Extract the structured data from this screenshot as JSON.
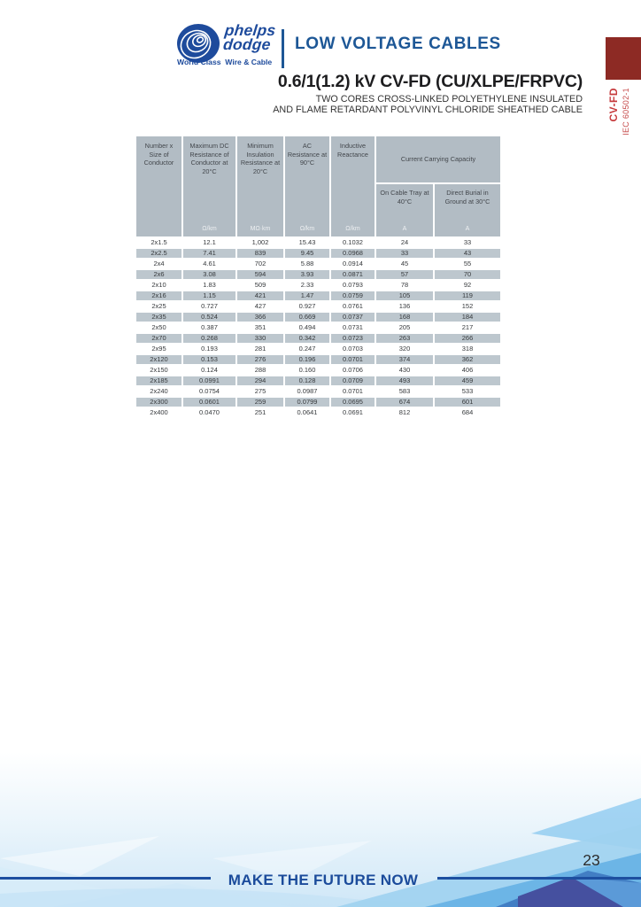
{
  "brand": {
    "logo_line1": "phelps",
    "logo_line2": "dodge",
    "tagline": "World Class  Wire & Cable",
    "category": "LOW VOLTAGE CABLES"
  },
  "side_tab": {
    "code": "CV-FD",
    "standard": "IEC 60502-1",
    "tab_color": "#8d2a24",
    "text_color": "#c63a3c"
  },
  "product": {
    "title": "0.6/1(1.2) kV CV-FD (CU/XLPE/FRPVC)",
    "subtitle_line1": "TWO CORES CROSS-LINKED POLYETHYLENE INSULATED",
    "subtitle_line2": "AND FLAME RETARDANT POLYVINYL CHLORIDE SHEATHED CABLE"
  },
  "table": {
    "headers": {
      "col1": "Number x Size of Conductor",
      "col2": "Maximum DC Resistance of Conductor at 20°C",
      "col3": "Minimum Insulation Resistance at 20°C",
      "col4": "AC Resistance at 90°C",
      "col5": "Inductive Reactance",
      "ccc": "Current Carrying Capacity",
      "ccc_sub1": "On Cable Tray at 40°C",
      "ccc_sub2": "Direct Burial in Ground at 30°C"
    },
    "units": [
      "",
      "Ω/km",
      "MΩ·km",
      "Ω/km",
      "Ω/km",
      "A",
      "A"
    ],
    "rows": [
      [
        "2x1.5",
        "12.1",
        "1,002",
        "15.43",
        "0.1032",
        "24",
        "33"
      ],
      [
        "2x2.5",
        "7.41",
        "839",
        "9.45",
        "0.0968",
        "33",
        "43"
      ],
      [
        "2x4",
        "4.61",
        "702",
        "5.88",
        "0.0914",
        "45",
        "55"
      ],
      [
        "2x6",
        "3.08",
        "594",
        "3.93",
        "0.0871",
        "57",
        "70"
      ],
      [
        "2x10",
        "1.83",
        "509",
        "2.33",
        "0.0793",
        "78",
        "92"
      ],
      [
        "2x16",
        "1.15",
        "421",
        "1.47",
        "0.0759",
        "105",
        "119"
      ],
      [
        "2x25",
        "0.727",
        "427",
        "0.927",
        "0.0761",
        "136",
        "152"
      ],
      [
        "2x35",
        "0.524",
        "366",
        "0.669",
        "0.0737",
        "168",
        "184"
      ],
      [
        "2x50",
        "0.387",
        "351",
        "0.494",
        "0.0731",
        "205",
        "217"
      ],
      [
        "2x70",
        "0.268",
        "330",
        "0.342",
        "0.0723",
        "263",
        "266"
      ],
      [
        "2x95",
        "0.193",
        "281",
        "0.247",
        "0.0703",
        "320",
        "318"
      ],
      [
        "2x120",
        "0.153",
        "276",
        "0.196",
        "0.0701",
        "374",
        "362"
      ],
      [
        "2x150",
        "0.124",
        "288",
        "0.160",
        "0.0706",
        "430",
        "406"
      ],
      [
        "2x185",
        "0.0991",
        "294",
        "0.128",
        "0.0709",
        "493",
        "459"
      ],
      [
        "2x240",
        "0.0754",
        "275",
        "0.0987",
        "0.0701",
        "583",
        "533"
      ],
      [
        "2x300",
        "0.0601",
        "259",
        "0.0799",
        "0.0695",
        "674",
        "601"
      ],
      [
        "2x400",
        "0.0470",
        "251",
        "0.0641",
        "0.0691",
        "812",
        "684"
      ]
    ]
  },
  "footer": {
    "slogan": "MAKE THE FUTURE NOW",
    "page_number": "23"
  },
  "colors": {
    "brand_blue": "#1e4b9c",
    "category_blue": "#1d5796",
    "table_header_bg": "#b2bcc4",
    "table_stripe_bg": "#bdc7ce",
    "footer_blue": "#1b4b9b"
  }
}
